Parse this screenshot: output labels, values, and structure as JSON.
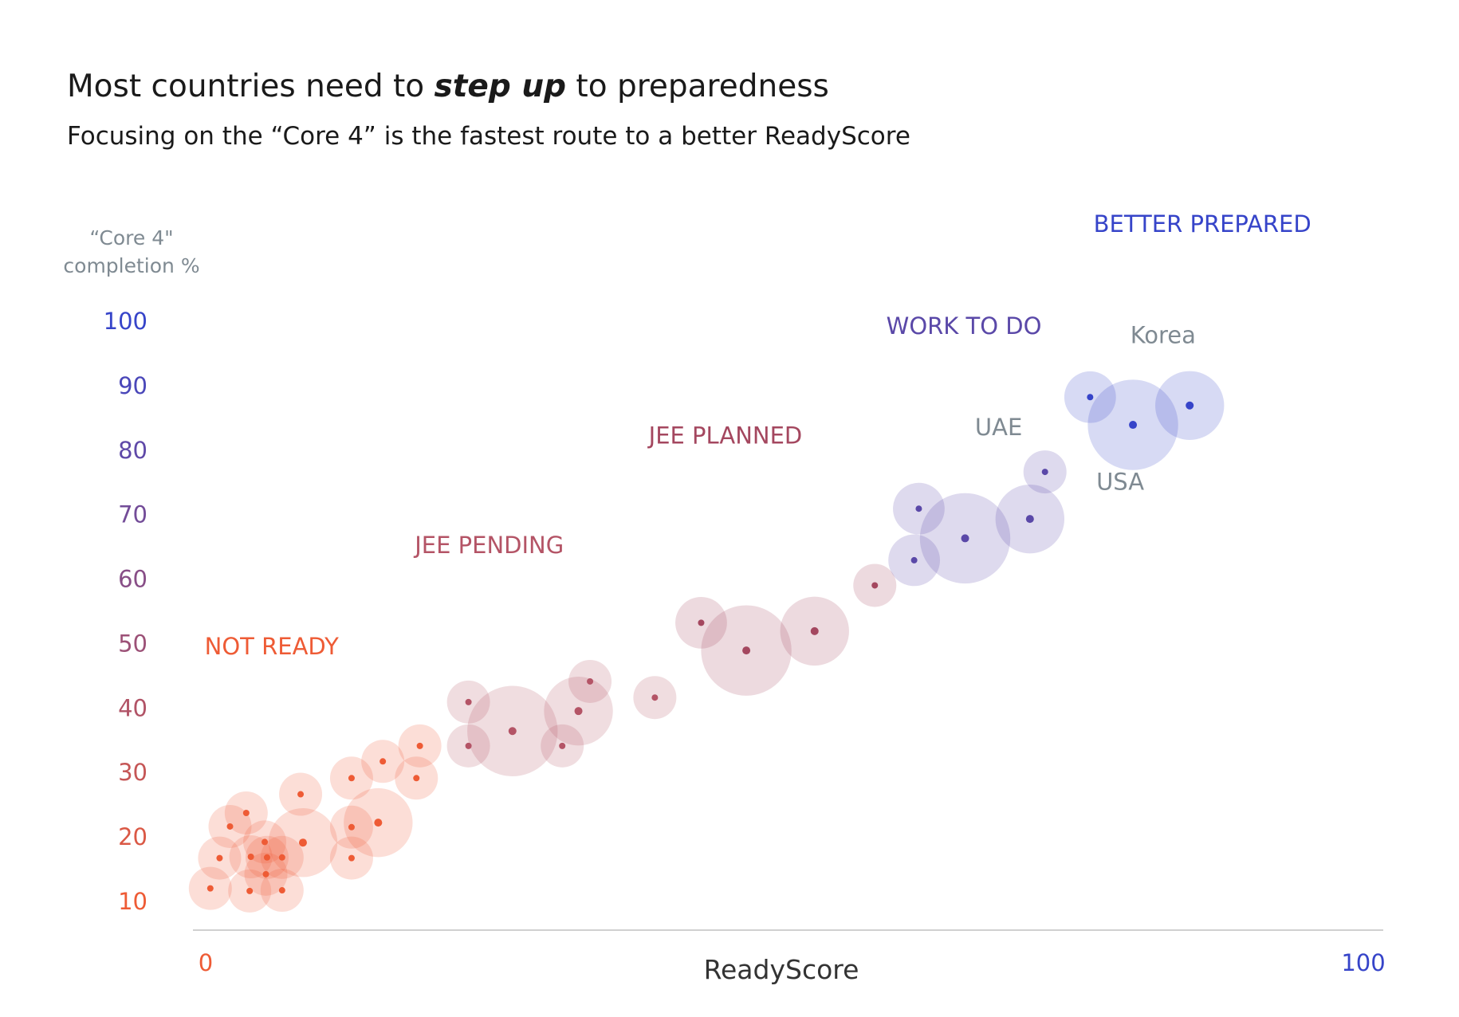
{
  "title": {
    "before": "Most countries need to ",
    "emphasis": "step up",
    "after": " to preparedness"
  },
  "subtitle": "Focusing on the “Core 4” is the fastest route to a better ReadyScore",
  "chart_data": {
    "type": "scatter",
    "title": "Most countries need to step up to preparedness",
    "subtitle": "Focusing on the “Core 4” is the fastest route to a better ReadyScore",
    "xlabel": "ReadyScore",
    "ylabel_lines": [
      "“Core 4\"",
      "completion %"
    ],
    "xlim": [
      0,
      100
    ],
    "ylim": [
      5,
      105
    ],
    "x_tick_labels": [
      "0",
      "100"
    ],
    "y_ticks": [
      10,
      20,
      30,
      40,
      50,
      60,
      70,
      80,
      90,
      100
    ],
    "grid": false,
    "bubble_sizes": "relative",
    "category_colors": {
      "NOT READY": "#ee5b35",
      "JEE PENDING": "#b45466",
      "JEE PLANNED": "#a4475f",
      "WORK TO DO": "#5a48a8",
      "BETTER PREPARED": "#3644c9"
    },
    "category_labels": [
      {
        "text": "NOT READY",
        "color": "#ee5b35",
        "x": 5.7,
        "y": 48.2
      },
      {
        "text": "JEE PENDING",
        "color": "#b45466",
        "x": 24.5,
        "y": 63.9
      },
      {
        "text": "JEE PLANNED",
        "color": "#a4475f",
        "x": 44.9,
        "y": 80.9
      },
      {
        "text": "WORK TO DO",
        "color": "#5a48a8",
        "x": 65.5,
        "y": 97.9
      },
      {
        "text": "BETTER PREPARED",
        "color": "#3644c9",
        "x": 86.1,
        "y": 113.7
      }
    ],
    "annotations": [
      {
        "text": "Korea",
        "x": 82.7,
        "y": 96.5
      },
      {
        "text": "UAE",
        "x": 68.5,
        "y": 82.2
      },
      {
        "text": "USA",
        "x": 79.0,
        "y": 73.7
      }
    ],
    "series": [
      {
        "name": "NOT READY",
        "color": "#ee5b35",
        "points": [
          {
            "x": 0.4,
            "y": 11.9,
            "size": 1.0
          },
          {
            "x": 1.2,
            "y": 16.6,
            "size": 1.0
          },
          {
            "x": 2.1,
            "y": 21.5,
            "size": 1.0
          },
          {
            "x": 3.5,
            "y": 23.6,
            "size": 1.0
          },
          {
            "x": 3.8,
            "y": 11.5,
            "size": 1.0
          },
          {
            "x": 3.9,
            "y": 16.8,
            "size": 1.0
          },
          {
            "x": 5.1,
            "y": 19.1,
            "size": 1.0
          },
          {
            "x": 5.2,
            "y": 14.1,
            "size": 1.0
          },
          {
            "x": 5.3,
            "y": 16.7,
            "size": 1.0
          },
          {
            "x": 6.6,
            "y": 11.6,
            "size": 1.0
          },
          {
            "x": 6.6,
            "y": 16.7,
            "size": 1.0
          },
          {
            "x": 8.4,
            "y": 19.0,
            "size": 1.6
          },
          {
            "x": 8.2,
            "y": 26.5,
            "size": 1.0
          },
          {
            "x": 12.6,
            "y": 16.6,
            "size": 1.0
          },
          {
            "x": 12.6,
            "y": 21.4,
            "size": 1.0
          },
          {
            "x": 12.6,
            "y": 29.0,
            "size": 1.0
          },
          {
            "x": 14.9,
            "y": 22.1,
            "size": 1.6
          },
          {
            "x": 15.3,
            "y": 31.6,
            "size": 1.0
          },
          {
            "x": 18.2,
            "y": 29.0,
            "size": 1.0
          },
          {
            "x": 18.5,
            "y": 34.0,
            "size": 1.0
          }
        ]
      },
      {
        "name": "JEE PENDING",
        "color": "#b45466",
        "points": [
          {
            "x": 22.7,
            "y": 34.0,
            "size": 1.0
          },
          {
            "x": 22.7,
            "y": 40.8,
            "size": 1.0
          },
          {
            "x": 26.5,
            "y": 36.3,
            "size": 2.1
          },
          {
            "x": 30.8,
            "y": 34.0,
            "size": 1.0
          },
          {
            "x": 32.2,
            "y": 39.4,
            "size": 1.6
          },
          {
            "x": 33.2,
            "y": 44.0,
            "size": 1.0
          },
          {
            "x": 38.8,
            "y": 41.5,
            "size": 1.0
          }
        ]
      },
      {
        "name": "JEE PLANNED",
        "color": "#a4475f",
        "points": [
          {
            "x": 42.8,
            "y": 53.1,
            "size": 1.2
          },
          {
            "x": 46.7,
            "y": 48.8,
            "size": 2.1
          },
          {
            "x": 52.6,
            "y": 51.8,
            "size": 1.6
          },
          {
            "x": 57.8,
            "y": 58.9,
            "size": 1.0
          }
        ]
      },
      {
        "name": "WORK TO DO",
        "color": "#5a48a8",
        "points": [
          {
            "x": 61.2,
            "y": 62.8,
            "size": 1.2
          },
          {
            "x": 61.6,
            "y": 70.8,
            "size": 1.2
          },
          {
            "x": 65.6,
            "y": 66.2,
            "size": 2.1
          },
          {
            "x": 71.2,
            "y": 69.2,
            "size": 1.6
          },
          {
            "x": 72.5,
            "y": 76.5,
            "size": 1.0
          }
        ]
      },
      {
        "name": "BETTER PREPARED",
        "color": "#3644c9",
        "points": [
          {
            "x": 76.4,
            "y": 88.1,
            "size": 1.2
          },
          {
            "x": 80.1,
            "y": 83.8,
            "size": 2.1
          },
          {
            "x": 85.0,
            "y": 86.8,
            "size": 1.6
          }
        ]
      }
    ]
  }
}
